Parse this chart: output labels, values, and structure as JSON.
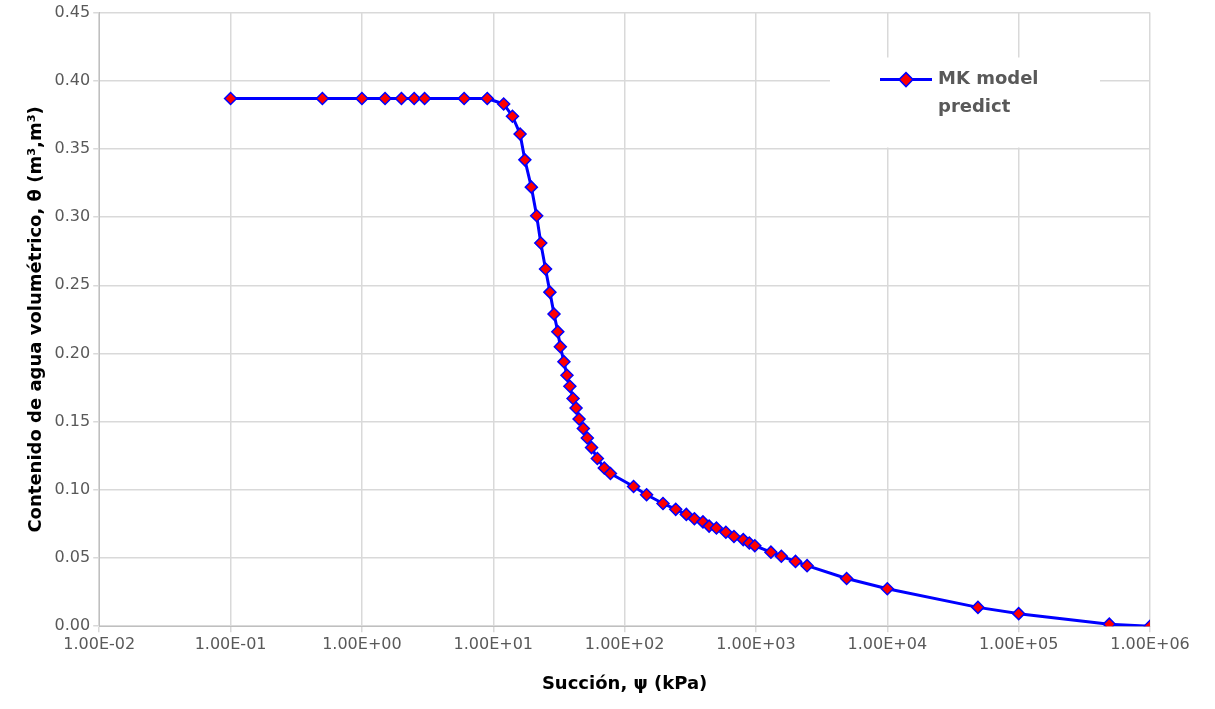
{
  "chart_data": {
    "type": "line",
    "xlabel": "Succión, ψ (kPa)",
    "ylabel": "Contenido de agua volumétrico, θ (m³,m³)",
    "log": "x",
    "grid": true,
    "legend": "top right",
    "marker": "diamond",
    "line_style": "solid",
    "xlim": [
      0.01,
      1000000
    ],
    "ylim": [
      0,
      0.45
    ],
    "xticks": [
      {
        "value": 0.01,
        "label": "1.00E-02"
      },
      {
        "value": 0.1,
        "label": "1.00E-01"
      },
      {
        "value": 1,
        "label": "1.00E+00"
      },
      {
        "value": 10,
        "label": "1.00E+01"
      },
      {
        "value": 100,
        "label": "1.00E+02"
      },
      {
        "value": 1000,
        "label": "1.00E+03"
      },
      {
        "value": 10000,
        "label": "1.00E+04"
      },
      {
        "value": 100000,
        "label": "1.00E+05"
      },
      {
        "value": 1000000,
        "label": "1.00E+06"
      }
    ],
    "yticks": [
      {
        "value": 0,
        "label": "0.00"
      },
      {
        "value": 0.05,
        "label": "0.05"
      },
      {
        "value": 0.1,
        "label": "0.10"
      },
      {
        "value": 0.15,
        "label": "0.15"
      },
      {
        "value": 0.2,
        "label": "0.20"
      },
      {
        "value": 0.25,
        "label": "0.25"
      },
      {
        "value": 0.3,
        "label": "0.30"
      },
      {
        "value": 0.35,
        "label": "0.35"
      },
      {
        "value": 0.4,
        "label": "0.40"
      },
      {
        "value": 0.45,
        "label": "0.45"
      }
    ],
    "series": [
      {
        "name": "MK model predict",
        "color": "#0000ff",
        "x": [
          0.1,
          0.5,
          1,
          1.5,
          2,
          2.5,
          3,
          6,
          9,
          12,
          14,
          16,
          17.4,
          19.5,
          21.4,
          23,
          25,
          27,
          29,
          31,
          32.4,
          34.5,
          36.4,
          38.3,
          40.5,
          42.7,
          45,
          48.5,
          52,
          56,
          62,
          70,
          78,
          117,
          147,
          196,
          245,
          295,
          340,
          395,
          440,
          500,
          590,
          680,
          800,
          890,
          980,
          1300,
          1560,
          2000,
          2450,
          4900,
          10000,
          49000,
          100000,
          490000,
          1000000
        ],
        "values": [
          0.387,
          0.387,
          0.387,
          0.387,
          0.387,
          0.387,
          0.387,
          0.387,
          0.387,
          0.383,
          0.374,
          0.361,
          0.342,
          0.322,
          0.301,
          0.281,
          0.262,
          0.245,
          0.229,
          0.216,
          0.205,
          0.194,
          0.184,
          0.176,
          0.167,
          0.16,
          0.152,
          0.145,
          0.138,
          0.131,
          0.123,
          0.116,
          0.112,
          0.1025,
          0.0964,
          0.09,
          0.0857,
          0.082,
          0.0788,
          0.0765,
          0.0734,
          0.072,
          0.0689,
          0.0658,
          0.0635,
          0.061,
          0.059,
          0.0543,
          0.0513,
          0.0475,
          0.0444,
          0.035,
          0.0275,
          0.0138,
          0.0092,
          0.0015,
          0
        ]
      }
    ]
  }
}
